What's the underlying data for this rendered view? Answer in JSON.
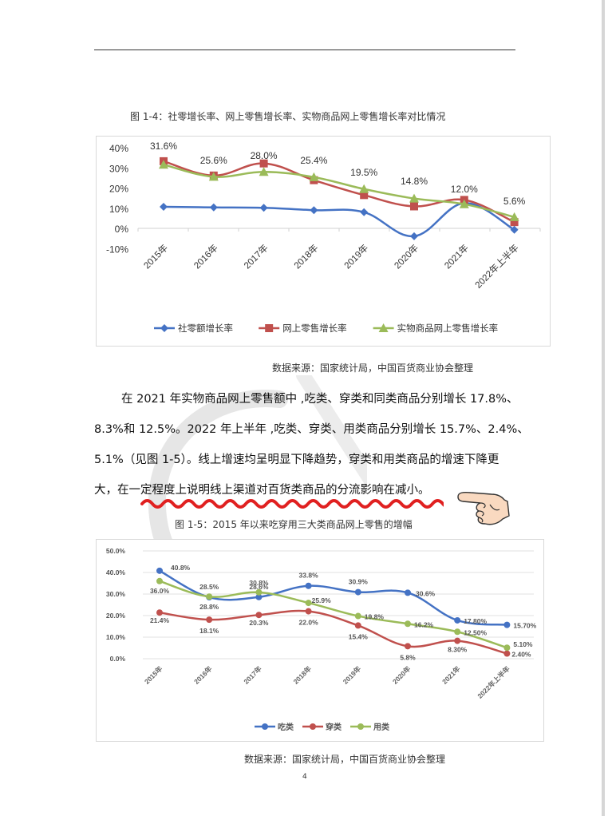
{
  "page": {
    "number": "4",
    "colors": {
      "blue": "#4472C4",
      "red": "#C0504D",
      "green": "#9BBB59",
      "wavy_underline": "#E02020",
      "hand_fill": "#F9D9C0"
    }
  },
  "figure1": {
    "caption": "图 1-4：社零增长率、网上零售增长率、实物商品网上零售增长率对比情况",
    "source": "数据来源：国家统计局，中国百货商业协会整理"
  },
  "paragraph": {
    "lines": [
      "在 2021 年实物商品网上零售额中 ,吃类、穿类和同类商品分别增长 17.8%、",
      "8.3%和 12.5%。2022 年上半年 ,吃类、穿类、用类商品分别增长 15.7%、2.4%、",
      "5.1%（见图 1-5）。线上增速均呈明显下降趋势，穿类和用类商品的增速下降更",
      "大，在一定程度上说明线上渠道对百货类商品的分流影响在减小。"
    ],
    "annotation_icon": "pointing-hand-icon"
  },
  "figure2": {
    "caption": "图 1-5：2015 年以来吃穿用三大类商品网上零售的增幅",
    "source": "数据来源：国家统计局，中国百货商业协会整理"
  },
  "chart_data": [
    {
      "type": "line",
      "title": "图 1-4：社零增长率、网上零售增长率、实物商品网上零售增长率对比情况",
      "categories": [
        "2015年",
        "2016年",
        "2017年",
        "2018年",
        "2019年",
        "2020年",
        "2021年",
        "2022年上半年"
      ],
      "yticks": [
        "40%",
        "30%",
        "20%",
        "10%",
        "0%",
        "-10%"
      ],
      "ylim": [
        -10,
        40
      ],
      "grid": false,
      "legend_position": "bottom",
      "series": [
        {
          "name": "社零额增长率",
          "color": "#4472C4",
          "marker": "diamond",
          "values": [
            10.7,
            10.4,
            10.2,
            9.0,
            8.0,
            -3.9,
            12.5,
            -0.7
          ],
          "labels": []
        },
        {
          "name": "网上零售增长率",
          "color": "#C0504D",
          "marker": "square",
          "values": [
            33.3,
            26.2,
            32.2,
            23.9,
            16.5,
            10.9,
            14.1,
            3.1
          ],
          "labels": []
        },
        {
          "name": "实物商品网上零售增长率",
          "color": "#9BBB59",
          "marker": "triangle",
          "values": [
            31.6,
            25.6,
            28.0,
            25.4,
            19.5,
            14.8,
            12.0,
            5.6
          ],
          "labels": [
            "31.6%",
            "25.6%",
            "28.0%",
            "25.4%",
            "19.5%",
            "14.8%",
            "12.0%",
            "5.6%"
          ]
        }
      ]
    },
    {
      "type": "line",
      "title": "图 1-5：2015 年以来吃穿用三大类商品网上零售的增幅",
      "categories": [
        "2015年",
        "2016年",
        "2017年",
        "2018年",
        "2019年",
        "2020年",
        "2021年",
        "2022年上半年"
      ],
      "yticks": [
        "50.0%",
        "40.0%",
        "30.0%",
        "20.0%",
        "10.0%",
        "0.0%"
      ],
      "ylim": [
        0,
        50
      ],
      "grid": true,
      "legend_position": "bottom",
      "series": [
        {
          "name": "吃类",
          "color": "#4472C4",
          "marker": "circle",
          "values": [
            40.8,
            28.5,
            28.6,
            33.8,
            30.9,
            30.6,
            17.8,
            15.7
          ],
          "labels": [
            "40.8%",
            "28.5%",
            "28.6%",
            "33.8%",
            "30.9%",
            "30.6%",
            "17.80%",
            "15.70%"
          ]
        },
        {
          "name": "穿类",
          "color": "#C0504D",
          "marker": "circle",
          "values": [
            21.4,
            18.1,
            20.3,
            22.0,
            15.4,
            5.8,
            8.3,
            2.4
          ],
          "labels": [
            "21.4%",
            "18.1%",
            "20.3%",
            "22.0%",
            "15.4%",
            "5.8%",
            "8.30%",
            "2.40%"
          ]
        },
        {
          "name": "用类",
          "color": "#9BBB59",
          "marker": "circle",
          "values": [
            36.0,
            28.8,
            30.8,
            25.9,
            19.8,
            16.2,
            12.5,
            5.1
          ],
          "labels": [
            "36.0%",
            "28.8%",
            "30.8%",
            "25.9%",
            "19.8%",
            "16.2%",
            "12.50%",
            "5.10%"
          ]
        }
      ]
    }
  ]
}
